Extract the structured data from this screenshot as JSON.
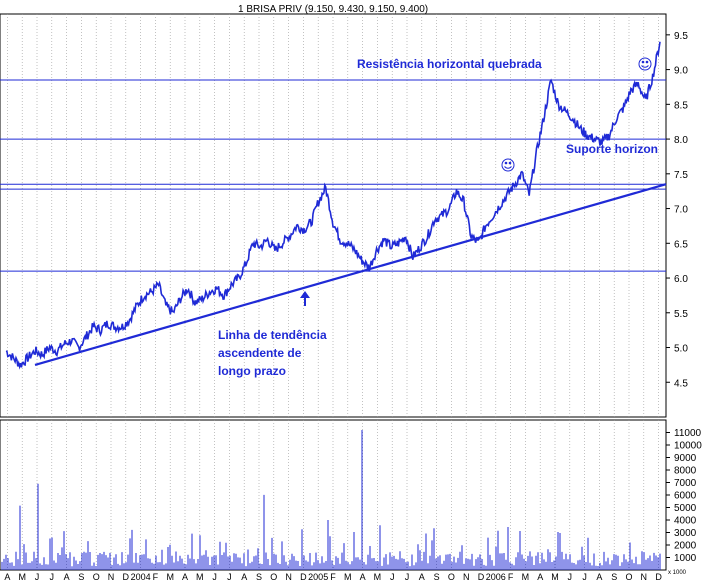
{
  "chart_data": {
    "type": "line",
    "title": "1 BRISA PRIV (9.150, 9.430, 9.150, 9.400)",
    "ylim": [
      4.0,
      9.8
    ],
    "y_ticks": [
      "4.5",
      "5.0",
      "5.5",
      "6.0",
      "6.5",
      "7.0",
      "7.5",
      "8.0",
      "8.5",
      "9.0",
      "9.5"
    ],
    "volume_ylim": [
      0,
      12000
    ],
    "volume_ticks": [
      "1000",
      "2000",
      "3000",
      "4000",
      "5000",
      "6000",
      "7000",
      "8000",
      "9000",
      "10000",
      "11000"
    ],
    "volume_unit": "x 1000",
    "x_labels": [
      "A",
      "M",
      "J",
      "J",
      "A",
      "S",
      "O",
      "N",
      "D",
      "2004",
      "F",
      "M",
      "A",
      "M",
      "J",
      "J",
      "A",
      "S",
      "O",
      "N",
      "D",
      "2005",
      "F",
      "M",
      "A",
      "M",
      "J",
      "J",
      "A",
      "S",
      "O",
      "N",
      "D",
      "2006",
      "F",
      "M",
      "A",
      "M",
      "J",
      "J",
      "A",
      "S",
      "O",
      "N",
      "D"
    ],
    "price_series": {
      "name": "BRISA PRIV",
      "x": [
        0,
        1,
        2,
        3,
        4,
        5,
        6,
        7,
        8,
        9,
        10,
        11,
        12,
        13,
        14,
        15,
        16,
        17,
        18,
        19,
        20,
        21,
        22,
        23,
        24,
        25,
        26,
        27,
        28,
        29,
        30,
        31,
        32,
        33,
        34,
        35,
        36,
        37,
        38,
        39,
        40,
        41,
        42,
        43,
        44,
        45,
        46,
        47,
        48,
        49,
        50,
        51,
        52,
        53,
        54,
        55,
        56,
        57,
        58,
        59,
        60,
        61,
        62,
        63,
        64,
        65,
        66,
        67,
        68,
        69,
        70,
        71,
        72,
        73,
        74,
        75,
        76,
        77,
        78,
        79,
        80,
        81,
        82,
        83,
        84,
        85,
        86,
        87,
        88,
        89,
        90
      ],
      "y": [
        4.95,
        4.85,
        4.75,
        4.85,
        4.95,
        4.9,
        5.0,
        4.95,
        5.05,
        5.1,
        5.0,
        5.15,
        5.3,
        5.25,
        5.35,
        5.3,
        5.3,
        5.4,
        5.6,
        5.75,
        5.8,
        5.9,
        5.6,
        5.5,
        5.7,
        5.85,
        5.65,
        5.7,
        5.8,
        5.85,
        5.75,
        5.9,
        6.0,
        6.2,
        6.5,
        6.45,
        6.55,
        6.4,
        6.5,
        6.6,
        6.75,
        6.7,
        6.8,
        7.1,
        7.3,
        6.8,
        6.55,
        6.5,
        6.4,
        6.25,
        6.15,
        6.4,
        6.55,
        6.45,
        6.5,
        6.6,
        6.3,
        6.45,
        6.6,
        6.85,
        6.9,
        7.0,
        7.25,
        7.1,
        6.6,
        6.5,
        6.75,
        6.9,
        7.05,
        7.2,
        7.35,
        7.5,
        7.2,
        7.8,
        8.3,
        8.85,
        8.5,
        8.4,
        8.3,
        8.15,
        8.05,
        8.0,
        7.95,
        8.05,
        8.3,
        8.45,
        8.7,
        8.8,
        8.55,
        8.9,
        9.4
      ]
    },
    "horizontal_lines": [
      8.85,
      8.0,
      7.35,
      7.28,
      6.1
    ],
    "trendline": {
      "from": [
        4.75,
        0
      ],
      "to": [
        7.35,
        90
      ]
    },
    "annotations": [
      {
        "text": "Resistência horizontal quebrada"
      },
      {
        "text": "Suporte horizon"
      },
      {
        "text": "Linha de tendência"
      },
      {
        "text": "ascendente de"
      },
      {
        "text": "longo prazo"
      }
    ],
    "colors": {
      "line": "#1f2ad6",
      "volume": "#1f2ad6",
      "grid": "#9a9a9a",
      "annotation": "#1f2ad6"
    }
  }
}
